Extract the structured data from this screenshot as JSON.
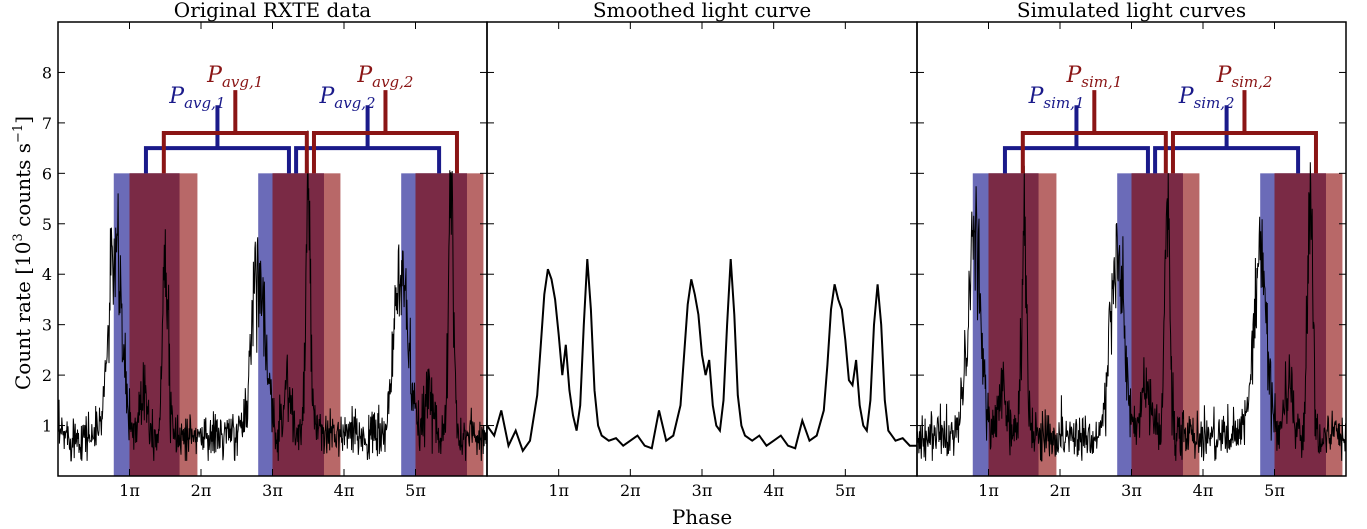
{
  "colors": {
    "blue_band": "#6b6bb8",
    "red_band": "#b86868",
    "overlap_band": "#7a2a45",
    "blue_bracket": "#1a1a8a",
    "red_bracket": "#8a1515",
    "curve": "#000000"
  },
  "figure": {
    "xlabel": "Phase",
    "ylabel": "Count rate [10",
    "ylabel_sup": "3",
    "ylabel_tail": " counts s",
    "ylabel_sup2": "−1",
    "ylabel_end": "]",
    "y_ticks": [
      "1",
      "2",
      "3",
      "4",
      "5",
      "6",
      "7",
      "8"
    ],
    "x_ticks": [
      "1π",
      "2π",
      "3π",
      "4π",
      "5π"
    ],
    "x_tick_values": [
      1,
      2,
      3,
      4,
      5
    ],
    "y_tick_values": [
      1,
      2,
      3,
      4,
      5,
      6,
      7,
      8
    ]
  },
  "chart_data": [
    {
      "type": "line",
      "title": "Original RXTE data",
      "xlabel": "Phase",
      "ylabel": "Count rate [10^3 counts s^-1]",
      "xlim_pi": [
        0,
        6.0
      ],
      "ylim": [
        0,
        9
      ],
      "x_unit": "π",
      "noisy": true,
      "peaks": [
        {
          "x_pi": 0.8,
          "y": 4.5,
          "x_pi_secondary": 1.5,
          "y_secondary": 5.0
        },
        {
          "x_pi": 2.8,
          "y": 4.3,
          "x_pi_secondary": 3.5,
          "y_secondary": 5.2
        },
        {
          "x_pi": 4.8,
          "y": 4.2,
          "x_pi_secondary": 5.5,
          "y_secondary": 5.4
        }
      ],
      "baseline": 0.8,
      "bands": {
        "blue": [
          [
            0.78,
            1.7
          ],
          [
            2.8,
            3.72
          ],
          [
            4.8,
            5.72
          ]
        ],
        "red": [
          [
            1.0,
            1.95
          ],
          [
            3.0,
            3.95
          ],
          [
            5.0,
            5.95
          ]
        ]
      },
      "annotations": {
        "blue_1": {
          "main": "P",
          "sub": "avg,1"
        },
        "red_1": {
          "main": "P",
          "sub": "avg,1"
        },
        "blue_2": {
          "main": "P",
          "sub": "avg,2"
        },
        "red_2": {
          "main": "P",
          "sub": "avg,2"
        }
      },
      "brackets": {
        "blue": [
          {
            "x1_pi": 1.23,
            "x2_pi": 3.23,
            "y_top": 6.5,
            "stem_top": 7.35
          },
          {
            "x1_pi": 3.33,
            "x2_pi": 5.33,
            "y_top": 6.5,
            "stem_top": 7.35
          }
        ],
        "red": [
          {
            "x1_pi": 1.48,
            "x2_pi": 3.48,
            "y_top": 6.8,
            "stem_top": 7.65
          },
          {
            "x1_pi": 3.58,
            "x2_pi": 5.58,
            "y_top": 6.8,
            "stem_top": 7.65
          }
        ]
      },
      "band_top": 6.0
    },
    {
      "type": "line",
      "title": "Smoothed light curve",
      "xlim_pi": [
        0,
        6.0
      ],
      "ylim": [
        0,
        9
      ],
      "x_unit": "π",
      "noisy": false,
      "x_pi": [
        0.0,
        0.1,
        0.2,
        0.3,
        0.4,
        0.5,
        0.6,
        0.7,
        0.75,
        0.8,
        0.85,
        0.9,
        0.95,
        1.0,
        1.05,
        1.1,
        1.15,
        1.2,
        1.25,
        1.3,
        1.35,
        1.4,
        1.45,
        1.5,
        1.55,
        1.6,
        1.7,
        1.8,
        1.9,
        2.0,
        2.1,
        2.2,
        2.3,
        2.4,
        2.5,
        2.6,
        2.7,
        2.75,
        2.8,
        2.85,
        2.9,
        2.95,
        3.0,
        3.05,
        3.1,
        3.15,
        3.2,
        3.25,
        3.3,
        3.35,
        3.4,
        3.45,
        3.5,
        3.55,
        3.6,
        3.7,
        3.8,
        3.9,
        4.0,
        4.1,
        4.2,
        4.3,
        4.4,
        4.5,
        4.6,
        4.7,
        4.75,
        4.8,
        4.85,
        4.9,
        4.95,
        5.0,
        5.05,
        5.1,
        5.15,
        5.2,
        5.25,
        5.3,
        5.35,
        5.4,
        5.45,
        5.5,
        5.55,
        5.6,
        5.7,
        5.8,
        5.9,
        6.0
      ],
      "y": [
        1.0,
        0.8,
        1.3,
        0.6,
        0.9,
        0.5,
        0.7,
        1.6,
        2.6,
        3.6,
        4.1,
        3.9,
        3.5,
        2.8,
        2.0,
        2.6,
        1.7,
        1.2,
        0.9,
        1.4,
        3.0,
        4.3,
        3.3,
        1.7,
        1.0,
        0.8,
        0.7,
        0.75,
        0.6,
        0.7,
        0.8,
        0.6,
        0.55,
        1.3,
        0.7,
        0.8,
        1.4,
        2.4,
        3.4,
        3.9,
        3.6,
        3.2,
        2.4,
        2.0,
        2.3,
        1.4,
        1.0,
        0.9,
        1.5,
        3.0,
        4.3,
        3.2,
        1.6,
        1.0,
        0.8,
        0.7,
        0.8,
        0.6,
        0.7,
        0.8,
        0.6,
        0.55,
        1.1,
        0.7,
        0.8,
        1.3,
        2.2,
        3.3,
        3.8,
        3.5,
        3.3,
        2.7,
        1.9,
        1.8,
        2.3,
        1.4,
        1.0,
        0.9,
        1.5,
        3.0,
        3.8,
        3.0,
        1.5,
        0.9,
        0.7,
        0.75,
        0.6,
        0.6
      ]
    },
    {
      "type": "line",
      "title": "Simulated light curves",
      "xlim_pi": [
        0,
        6.0
      ],
      "ylim": [
        0,
        9
      ],
      "x_unit": "π",
      "noisy": true,
      "peaks": [
        {
          "x_pi": 0.8,
          "y": 4.6,
          "x_pi_secondary": 1.5,
          "y_secondary": 5.2
        },
        {
          "x_pi": 2.8,
          "y": 4.4,
          "x_pi_secondary": 3.5,
          "y_secondary": 5.5
        },
        {
          "x_pi": 4.8,
          "y": 4.3,
          "x_pi_secondary": 5.5,
          "y_secondary": 5.6
        }
      ],
      "baseline": 0.8,
      "bands": {
        "blue": [
          [
            0.78,
            1.7
          ],
          [
            2.8,
            3.72
          ],
          [
            4.8,
            5.72
          ]
        ],
        "red": [
          [
            1.0,
            1.95
          ],
          [
            3.0,
            3.95
          ],
          [
            5.0,
            5.95
          ]
        ]
      },
      "annotations": {
        "blue_1": {
          "main": "P",
          "sub": "sim,1"
        },
        "red_1": {
          "main": "P",
          "sub": "sim,1"
        },
        "blue_2": {
          "main": "P",
          "sub": "sim,2"
        },
        "red_2": {
          "main": "P",
          "sub": "sim,2"
        }
      },
      "brackets": {
        "blue": [
          {
            "x1_pi": 1.23,
            "x2_pi": 3.23,
            "y_top": 6.5,
            "stem_top": 7.35
          },
          {
            "x1_pi": 3.33,
            "x2_pi": 5.33,
            "y_top": 6.5,
            "stem_top": 7.35
          }
        ],
        "red": [
          {
            "x1_pi": 1.48,
            "x2_pi": 3.48,
            "y_top": 6.8,
            "stem_top": 7.65
          },
          {
            "x1_pi": 3.58,
            "x2_pi": 5.58,
            "y_top": 6.8,
            "stem_top": 7.65
          }
        ]
      },
      "band_top": 6.0
    }
  ]
}
